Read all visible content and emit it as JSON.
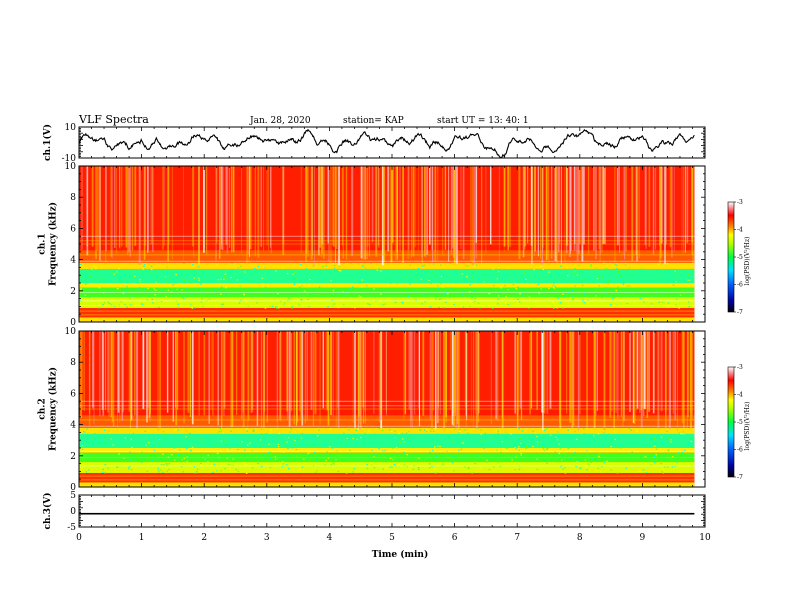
{
  "header": {
    "title": "VLF Spectra",
    "date": "Jan. 28, 2020",
    "station": "station= KAP",
    "start": "start  UT =   13: 40: 1"
  },
  "chart_data": [
    {
      "type": "line",
      "panel": "ch1-waveform",
      "ylabel": "ch.1(V)",
      "ylim": [
        -10,
        10
      ],
      "yticks": [
        "10",
        "-10"
      ],
      "xlim": [
        0,
        10
      ],
      "x_end": 9.83,
      "series_color": "#000000"
    },
    {
      "type": "heatmap",
      "panel": "ch1-spectrogram",
      "ylabel": "ch.1\nFrequency  (kHz)",
      "ylabel_lines": [
        "ch.1",
        "Frequency  (kHz)"
      ],
      "ylim": [
        0,
        10
      ],
      "yticks": [
        "0",
        "2",
        "4",
        "6",
        "8",
        "10"
      ],
      "xlim": [
        0,
        10
      ],
      "x_end": 9.83,
      "colorbar": {
        "label": "log(PSD)(V²/Hz)",
        "range": [
          -7,
          -3
        ],
        "ticks": [
          "-3",
          "-4",
          "-5",
          "-6",
          "-7"
        ]
      }
    },
    {
      "type": "heatmap",
      "panel": "ch2-spectrogram",
      "ylabel": "ch.2\nFrequency  (kHz)",
      "ylabel_lines": [
        "ch.2",
        "Frequency  (kHz)"
      ],
      "ylim": [
        0,
        10
      ],
      "yticks": [
        "0",
        "2",
        "4",
        "6",
        "8",
        "10"
      ],
      "xlim": [
        0,
        10
      ],
      "x_end": 9.83,
      "colorbar": {
        "label": "log(PSD)(V²/Hz)",
        "range": [
          -7,
          -3
        ],
        "ticks": [
          "-3",
          "-4",
          "-5",
          "-6",
          "-7"
        ]
      }
    },
    {
      "type": "line",
      "panel": "ch3-waveform",
      "ylabel": "ch.3(V)",
      "ylim": [
        -5,
        5
      ],
      "yticks": [
        "5",
        "0",
        "-5"
      ],
      "xlim": [
        0,
        10
      ],
      "x_end": 9.83,
      "value_band": [
        -1.1,
        -0.6
      ],
      "series_color": "#000000"
    }
  ],
  "xaxis": {
    "label": "Time  (min)",
    "ticks": [
      "0",
      "1",
      "2",
      "3",
      "4",
      "5",
      "6",
      "7",
      "8",
      "9",
      "10"
    ]
  },
  "colorscale": [
    "#000080",
    "#0000ff",
    "#00ffff",
    "#00ff00",
    "#ffff00",
    "#ff8000",
    "#ff0000",
    "#ffffff"
  ]
}
